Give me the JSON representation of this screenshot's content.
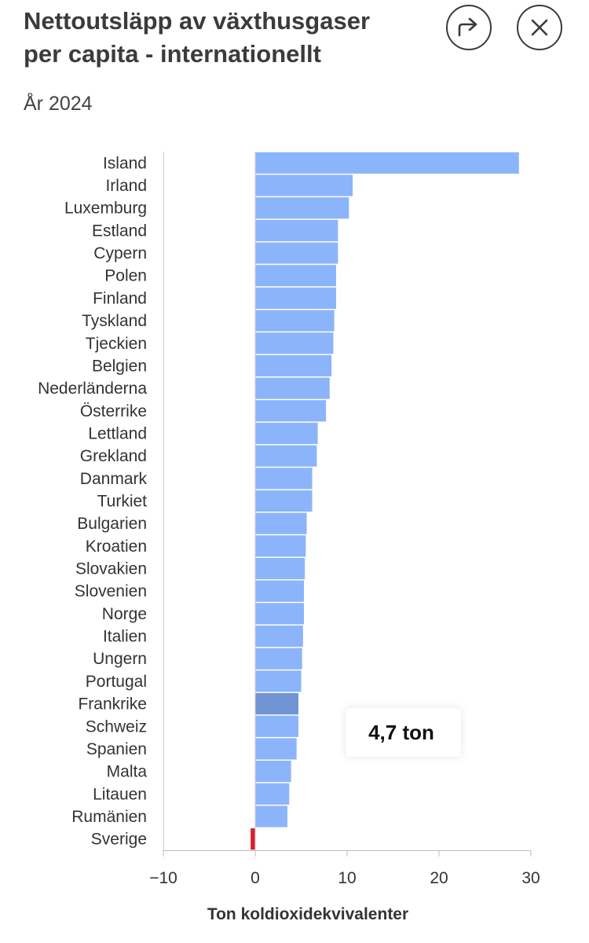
{
  "header": {
    "title_line1": "Nettoutsläpp av växthusgaser",
    "title_line2": "per capita - internationellt",
    "subtitle": "År 2024",
    "share_icon": "share-arrow-icon",
    "close_icon": "close-x-icon"
  },
  "tooltip": {
    "text": "4,7 ton"
  },
  "colors": {
    "bar": "#8cb4fb",
    "highlight": "#7194d4",
    "sweden": "#d8202a"
  },
  "chart_data": {
    "type": "bar",
    "orientation": "horizontal",
    "title": "Nettoutsläpp av växthusgaser per capita - internationellt",
    "subtitle": "År 2024",
    "xlabel": "Ton koldioxidekvivalenter",
    "xlim": [
      -10,
      30
    ],
    "xticks": [
      -10,
      0,
      10,
      20,
      30
    ],
    "xtick_labels": [
      "−10",
      "0",
      "10",
      "20",
      "30"
    ],
    "highlighted_category": "Frankrike",
    "categories": [
      "Island",
      "Irland",
      "Luxemburg",
      "Estland",
      "Cypern",
      "Polen",
      "Finland",
      "Tyskland",
      "Tjeckien",
      "Belgien",
      "Nederländerna",
      "Österrike",
      "Lettland",
      "Grekland",
      "Danmark",
      "Turkiet",
      "Bulgarien",
      "Kroatien",
      "Slovakien",
      "Slovenien",
      "Norge",
      "Italien",
      "Ungern",
      "Portugal",
      "Frankrike",
      "Schweiz",
      "Spanien",
      "Malta",
      "Litauen",
      "Rumänien",
      "Sverige"
    ],
    "values": [
      28.7,
      10.6,
      10.2,
      9.0,
      9.0,
      8.8,
      8.8,
      8.6,
      8.5,
      8.3,
      8.1,
      7.7,
      6.8,
      6.7,
      6.2,
      6.2,
      5.6,
      5.5,
      5.4,
      5.3,
      5.3,
      5.2,
      5.1,
      5.0,
      4.7,
      4.7,
      4.5,
      3.9,
      3.7,
      3.5,
      -0.5
    ]
  }
}
